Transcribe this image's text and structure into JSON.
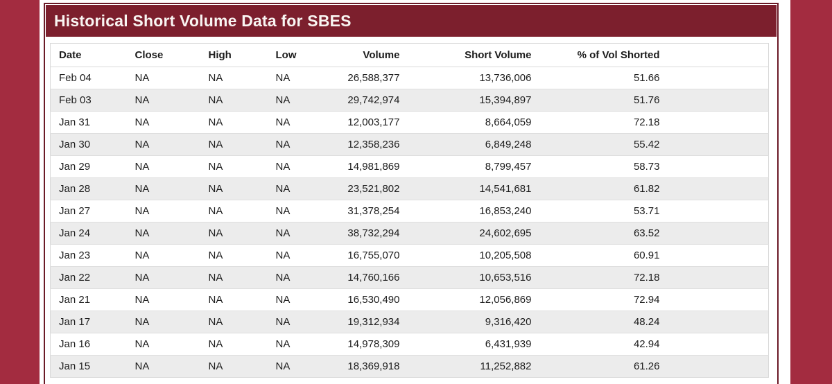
{
  "page": {
    "background_color": "#A32C40",
    "content_background": "#FFFFFF",
    "card_border_color": "#6B1A27"
  },
  "header": {
    "title": "Historical Short Volume Data for SBES",
    "background_color": "#7C1F2D",
    "text_color": "#F9F5F2"
  },
  "table": {
    "stripe_color": "#ECECEC",
    "columns": [
      {
        "label": "Date",
        "align": "left"
      },
      {
        "label": "Close",
        "align": "left"
      },
      {
        "label": "High",
        "align": "left"
      },
      {
        "label": "Low",
        "align": "left"
      },
      {
        "label": "Volume",
        "align": "right"
      },
      {
        "label": "Short Volume",
        "align": "right"
      },
      {
        "label": "% of Vol Shorted",
        "align": "right"
      }
    ],
    "rows": [
      [
        "Feb 04",
        "NA",
        "NA",
        "NA",
        "26,588,377",
        "13,736,006",
        "51.66"
      ],
      [
        "Feb 03",
        "NA",
        "NA",
        "NA",
        "29,742,974",
        "15,394,897",
        "51.76"
      ],
      [
        "Jan 31",
        "NA",
        "NA",
        "NA",
        "12,003,177",
        "8,664,059",
        "72.18"
      ],
      [
        "Jan 30",
        "NA",
        "NA",
        "NA",
        "12,358,236",
        "6,849,248",
        "55.42"
      ],
      [
        "Jan 29",
        "NA",
        "NA",
        "NA",
        "14,981,869",
        "8,799,457",
        "58.73"
      ],
      [
        "Jan 28",
        "NA",
        "NA",
        "NA",
        "23,521,802",
        "14,541,681",
        "61.82"
      ],
      [
        "Jan 27",
        "NA",
        "NA",
        "NA",
        "31,378,254",
        "16,853,240",
        "53.71"
      ],
      [
        "Jan 24",
        "NA",
        "NA",
        "NA",
        "38,732,294",
        "24,602,695",
        "63.52"
      ],
      [
        "Jan 23",
        "NA",
        "NA",
        "NA",
        "16,755,070",
        "10,205,508",
        "60.91"
      ],
      [
        "Jan 22",
        "NA",
        "NA",
        "NA",
        "14,760,166",
        "10,653,516",
        "72.18"
      ],
      [
        "Jan 21",
        "NA",
        "NA",
        "NA",
        "16,530,490",
        "12,056,869",
        "72.94"
      ],
      [
        "Jan 17",
        "NA",
        "NA",
        "NA",
        "19,312,934",
        "9,316,420",
        "48.24"
      ],
      [
        "Jan 16",
        "NA",
        "NA",
        "NA",
        "14,978,309",
        "6,431,939",
        "42.94"
      ],
      [
        "Jan 15",
        "NA",
        "NA",
        "NA",
        "18,369,918",
        "11,252,882",
        "61.26"
      ]
    ]
  }
}
